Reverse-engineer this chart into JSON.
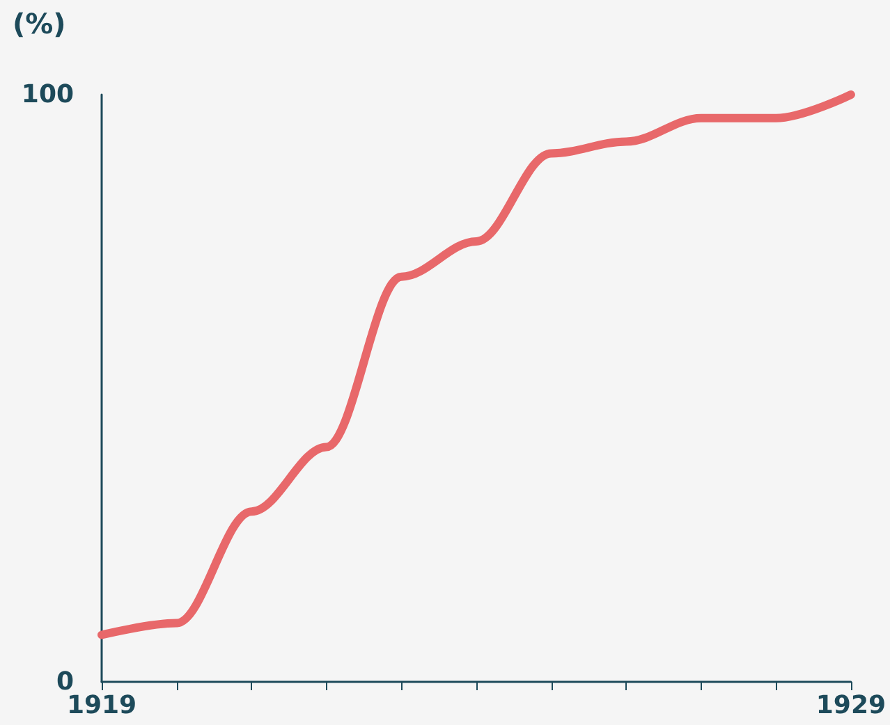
{
  "chart_data": {
    "type": "line",
    "ylabel": "(%)",
    "x": [
      1919,
      1920,
      1921,
      1922,
      1923,
      1924,
      1925,
      1926,
      1927,
      1928,
      1929
    ],
    "series": [
      {
        "color": "#e8686a",
        "values": [
          8,
          10,
          29,
          40,
          69,
          75,
          90,
          92,
          96,
          96,
          100
        ]
      }
    ],
    "xlim": [
      1919,
      1929
    ],
    "xticks": [
      1919,
      {
        "value": 1920,
        "label": null
      },
      {
        "value": 1921,
        "label": null
      },
      {
        "value": 1922,
        "label": null
      },
      {
        "value": 1923,
        "label": null
      },
      {
        "value": 1924,
        "label": null
      },
      {
        "value": 1925,
        "label": null
      },
      {
        "value": 1926,
        "label": null
      },
      {
        "value": 1927,
        "label": null
      },
      {
        "value": 1928,
        "label": null
      },
      1929
    ],
    "ylim": [
      0,
      100
    ],
    "yticks": [
      0,
      100
    ],
    "grid": false,
    "marker": "none",
    "line_style": "solid"
  }
}
